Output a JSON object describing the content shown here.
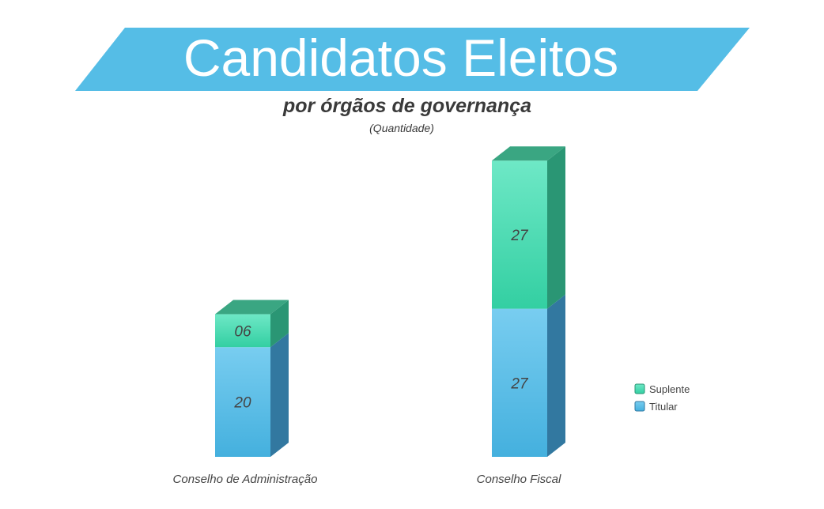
{
  "colors": {
    "banner": "#55bde6",
    "banner_text": "#ffffff",
    "subtitle_text": "#3a3a3a",
    "label_text": "#444444",
    "titular_front_top": "#78cdf0",
    "titular_front_bottom": "#44b0de",
    "titular_side": "#3278a0",
    "suplente_front_top": "#6ee8c6",
    "suplente_front_bottom": "#33cfa2",
    "suplente_side": "#2a9674",
    "suplente_top": "#3aa682"
  },
  "chart_data": {
    "type": "bar",
    "stacked": true,
    "title": "Candidatos Eleitos",
    "subtitle": "por órgãos de governança",
    "unit_note": "(Quantidade)",
    "categories": [
      "Conselho de Administração",
      "Conselho Fiscal"
    ],
    "series": [
      {
        "name": "Titular",
        "values": [
          20,
          27
        ],
        "labels": [
          "20",
          "27"
        ]
      },
      {
        "name": "Suplente",
        "values": [
          6,
          27
        ],
        "labels": [
          "06",
          "27"
        ]
      }
    ],
    "legend": {
      "position": "right",
      "order": [
        "Suplente",
        "Titular"
      ]
    },
    "grid": false,
    "ylim": [
      0,
      54
    ]
  }
}
